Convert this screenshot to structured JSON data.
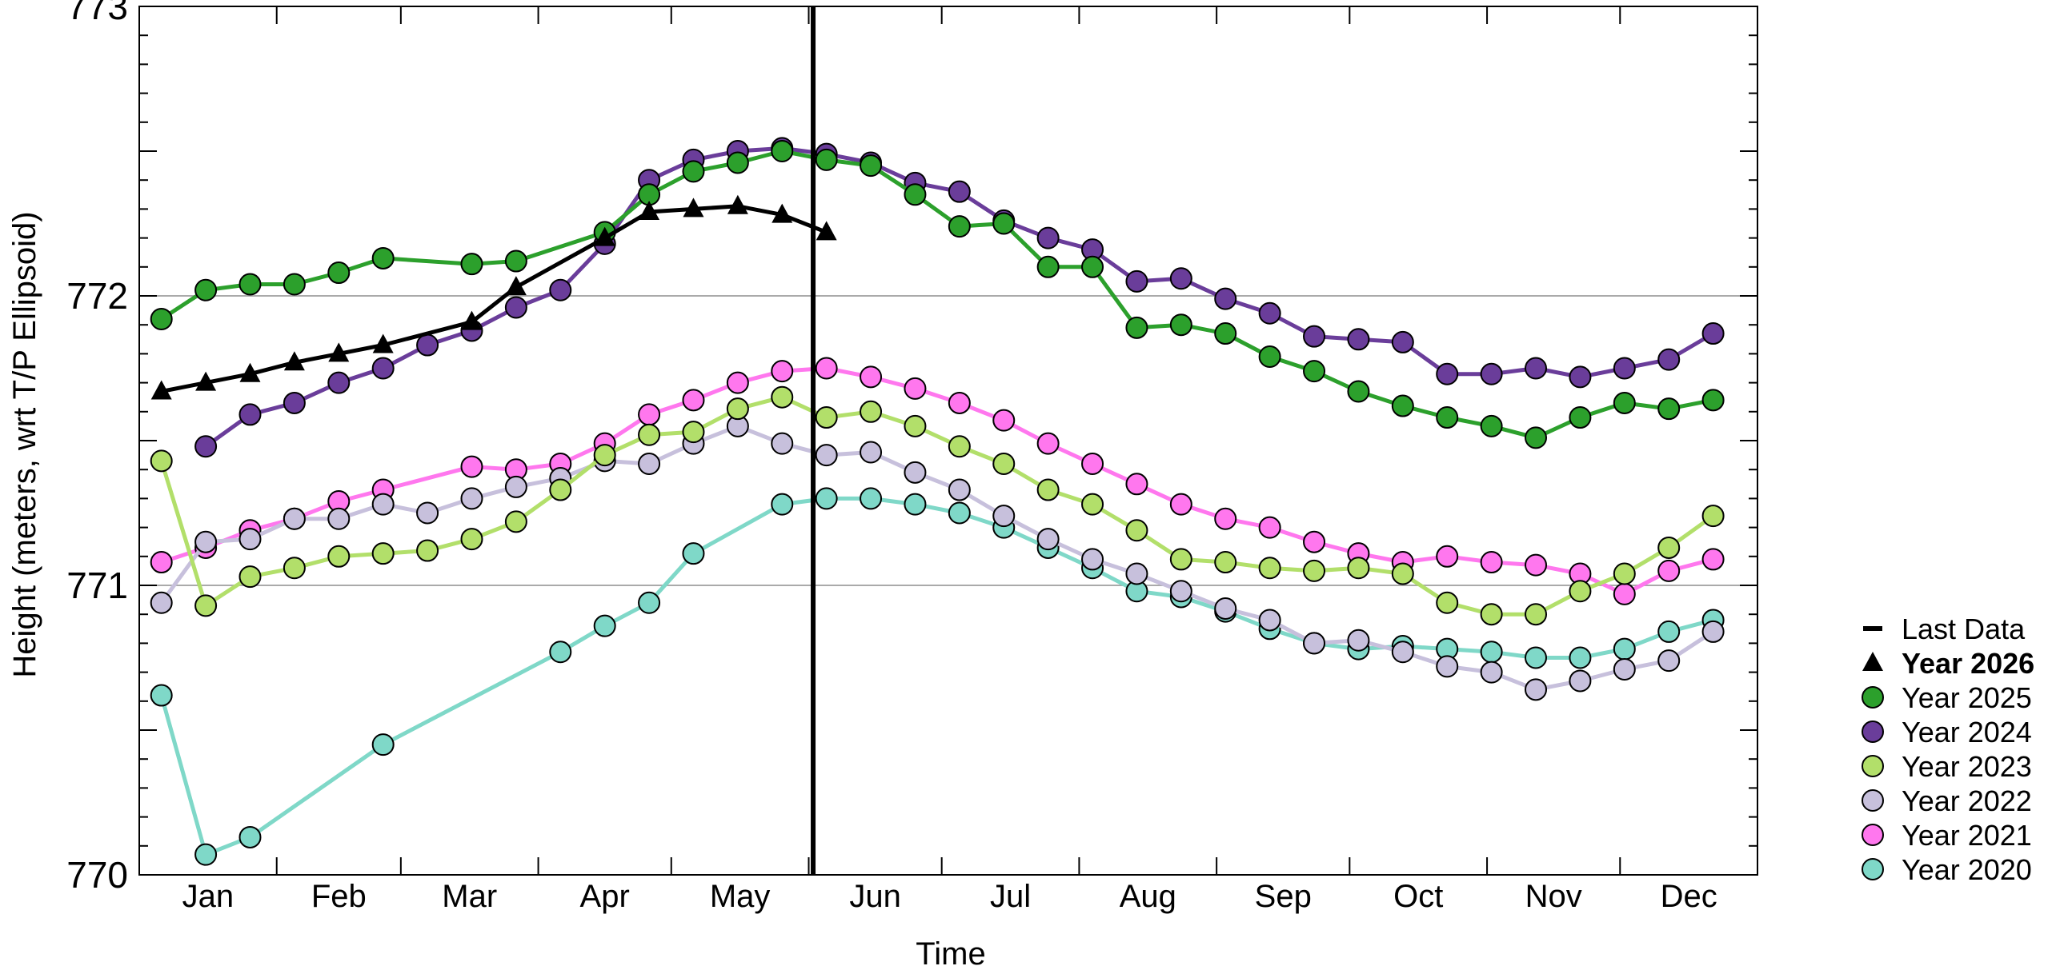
{
  "chart_data": {
    "type": "line",
    "title": "",
    "xlabel": "Time",
    "ylabel": "Height (meters, wrt T/P Ellipsoid)",
    "ylim": [
      770,
      773
    ],
    "xlim": [
      0,
      365
    ],
    "y_ticks": [
      "770",
      "771",
      "772",
      "773"
    ],
    "x_tick_labels": [
      {
        "label": "Jan",
        "day": 15.5
      },
      {
        "label": "Feb",
        "day": 45
      },
      {
        "label": "Mar",
        "day": 74.5
      },
      {
        "label": "Apr",
        "day": 105
      },
      {
        "label": "May",
        "day": 135.5
      },
      {
        "label": "Jun",
        "day": 166
      },
      {
        "label": "Jul",
        "day": 196.5
      },
      {
        "label": "Aug",
        "day": 227.5
      },
      {
        "label": "Sep",
        "day": 258
      },
      {
        "label": "Oct",
        "day": 288.5
      },
      {
        "label": "Nov",
        "day": 319
      },
      {
        "label": "Dec",
        "day": 349.5
      }
    ],
    "month_boundaries": [
      31,
      59,
      90,
      120,
      151,
      181,
      212,
      243,
      273,
      304,
      334
    ],
    "grid_y": [
      771,
      772
    ],
    "last_data_day": 152,
    "legend_position": "right",
    "legend": [
      {
        "label": "Last Data",
        "marker": "line",
        "color": "#000000",
        "bold": false
      },
      {
        "label": "Year 2026",
        "marker": "triangle",
        "color": "#000000",
        "bold": true
      },
      {
        "label": "Year 2025",
        "marker": "circle",
        "color": "#2ca02c",
        "bold": false
      },
      {
        "label": "Year 2024",
        "marker": "circle",
        "color": "#6a3d9a",
        "bold": false
      },
      {
        "label": "Year 2023",
        "marker": "circle",
        "color": "#b2df6a",
        "bold": false
      },
      {
        "label": "Year 2022",
        "marker": "circle",
        "color": "#c7c0dc",
        "bold": false
      },
      {
        "label": "Year 2021",
        "marker": "circle",
        "color": "#ff77ee",
        "bold": false
      },
      {
        "label": "Year 2020",
        "marker": "circle",
        "color": "#7fd8c8",
        "bold": false
      }
    ],
    "series": [
      {
        "name": "Year 2020",
        "color": "#7fd8c8",
        "marker": "circle",
        "x": [
          5,
          15,
          25,
          55,
          95,
          105,
          115,
          125,
          145,
          155,
          165,
          175,
          185,
          195,
          205,
          215,
          225,
          235,
          245,
          255,
          265,
          275,
          285,
          295,
          305,
          315,
          325,
          335,
          345,
          355
        ],
        "y": [
          770.62,
          770.07,
          770.13,
          770.45,
          770.77,
          770.86,
          770.94,
          771.11,
          771.28,
          771.3,
          771.3,
          771.28,
          771.25,
          771.2,
          771.13,
          771.06,
          770.98,
          770.96,
          770.91,
          770.85,
          770.8,
          770.78,
          770.79,
          770.78,
          770.77,
          770.75,
          770.75,
          770.78,
          770.84,
          770.88
        ]
      },
      {
        "name": "Year 2021",
        "color": "#ff77ee",
        "marker": "circle",
        "x": [
          5,
          15,
          25,
          35,
          45,
          55,
          75,
          85,
          95,
          105,
          115,
          125,
          135,
          145,
          155,
          165,
          175,
          185,
          195,
          205,
          215,
          225,
          235,
          245,
          255,
          265,
          275,
          285,
          295,
          305,
          315,
          325,
          335,
          345,
          355
        ],
        "y": [
          771.08,
          771.13,
          771.19,
          771.23,
          771.29,
          771.33,
          771.41,
          771.4,
          771.42,
          771.49,
          771.59,
          771.64,
          771.7,
          771.74,
          771.75,
          771.72,
          771.68,
          771.63,
          771.57,
          771.49,
          771.42,
          771.35,
          771.28,
          771.23,
          771.2,
          771.15,
          771.11,
          771.08,
          771.1,
          771.08,
          771.07,
          771.04,
          770.97,
          771.05,
          771.09
        ]
      },
      {
        "name": "Year 2022",
        "color": "#c7c0dc",
        "marker": "circle",
        "x": [
          5,
          15,
          25,
          35,
          45,
          55,
          65,
          75,
          85,
          95,
          105,
          115,
          125,
          135,
          145,
          155,
          165,
          175,
          185,
          195,
          205,
          215,
          225,
          235,
          245,
          255,
          265,
          275,
          285,
          295,
          305,
          315,
          325,
          335,
          345,
          355
        ],
        "y": [
          770.94,
          771.15,
          771.16,
          771.23,
          771.23,
          771.28,
          771.25,
          771.3,
          771.34,
          771.37,
          771.43,
          771.42,
          771.49,
          771.55,
          771.49,
          771.45,
          771.46,
          771.39,
          771.33,
          771.24,
          771.16,
          771.09,
          771.04,
          770.98,
          770.92,
          770.88,
          770.8,
          770.81,
          770.77,
          770.72,
          770.7,
          770.64,
          770.67,
          770.71,
          770.74,
          770.84
        ]
      },
      {
        "name": "Year 2023",
        "color": "#b2df6a",
        "marker": "circle",
        "x": [
          5,
          15,
          25,
          35,
          45,
          55,
          65,
          75,
          85,
          95,
          105,
          115,
          125,
          135,
          145,
          155,
          165,
          175,
          185,
          195,
          205,
          215,
          225,
          235,
          245,
          255,
          265,
          275,
          285,
          295,
          305,
          315,
          325,
          335,
          345,
          355
        ],
        "y": [
          771.43,
          770.93,
          771.03,
          771.06,
          771.1,
          771.11,
          771.12,
          771.16,
          771.22,
          771.33,
          771.45,
          771.52,
          771.53,
          771.61,
          771.65,
          771.58,
          771.6,
          771.55,
          771.48,
          771.42,
          771.33,
          771.28,
          771.19,
          771.09,
          771.08,
          771.06,
          771.05,
          771.06,
          771.04,
          770.94,
          770.9,
          770.9,
          770.98,
          771.04,
          771.13,
          771.24
        ]
      },
      {
        "name": "Year 2024",
        "color": "#6a3d9a",
        "marker": "circle",
        "x": [
          15,
          25,
          35,
          45,
          55,
          65,
          75,
          85,
          95,
          105,
          115,
          125,
          135,
          145,
          155,
          165,
          175,
          185,
          195,
          205,
          215,
          225,
          235,
          245,
          255,
          265,
          275,
          285,
          295,
          305,
          315,
          325,
          335,
          345,
          355
        ],
        "y": [
          771.48,
          771.59,
          771.63,
          771.7,
          771.75,
          771.83,
          771.88,
          771.96,
          772.02,
          772.18,
          772.4,
          772.47,
          772.5,
          772.51,
          772.49,
          772.46,
          772.39,
          772.36,
          772.26,
          772.2,
          772.16,
          772.05,
          772.06,
          771.99,
          771.94,
          771.86,
          771.85,
          771.84,
          771.73,
          771.73,
          771.75,
          771.72,
          771.75,
          771.78,
          771.87
        ]
      },
      {
        "name": "Year 2025",
        "color": "#2ca02c",
        "marker": "circle",
        "x": [
          5,
          15,
          25,
          35,
          45,
          55,
          75,
          85,
          105,
          115,
          125,
          135,
          145,
          155,
          165,
          175,
          185,
          195,
          205,
          215,
          225,
          235,
          245,
          255,
          265,
          275,
          285,
          295,
          305,
          315,
          325,
          335,
          345,
          355
        ],
        "y": [
          771.92,
          772.02,
          772.04,
          772.04,
          772.08,
          772.13,
          772.11,
          772.12,
          772.22,
          772.35,
          772.43,
          772.46,
          772.5,
          772.47,
          772.45,
          772.35,
          772.24,
          772.25,
          772.1,
          772.1,
          771.89,
          771.9,
          771.87,
          771.79,
          771.74,
          771.67,
          771.62,
          771.58,
          771.55,
          771.51,
          771.58,
          771.63,
          771.61,
          771.64
        ]
      },
      {
        "name": "Year 2026",
        "color": "#000000",
        "marker": "triangle",
        "x": [
          5,
          15,
          25,
          35,
          45,
          55,
          75,
          85,
          105,
          115,
          125,
          135,
          145,
          155
        ],
        "y": [
          771.67,
          771.7,
          771.73,
          771.77,
          771.8,
          771.83,
          771.91,
          772.03,
          772.2,
          772.29,
          772.3,
          772.31,
          772.28,
          772.22
        ]
      }
    ]
  }
}
